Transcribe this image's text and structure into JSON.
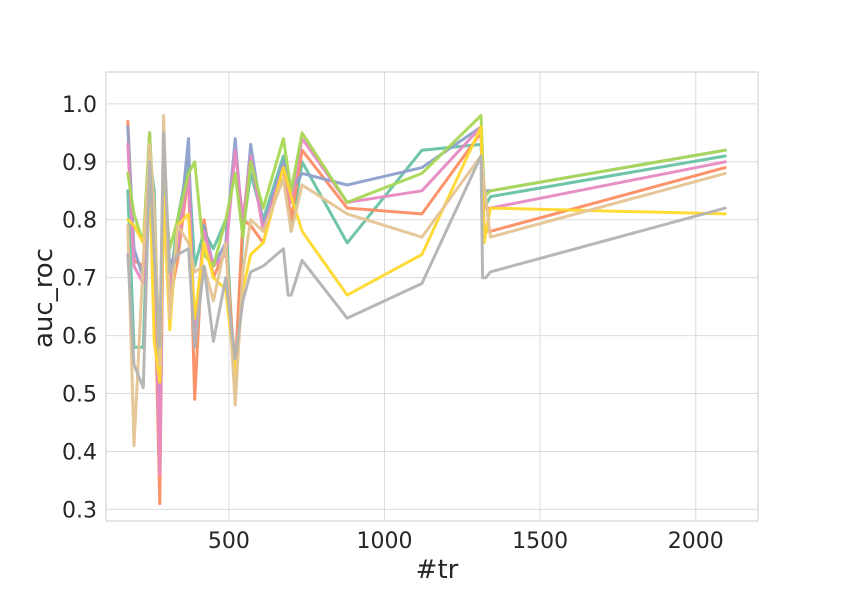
{
  "chart_data": {
    "type": "line",
    "title": "",
    "xlabel": "#tr",
    "ylabel": "auc_roc",
    "xlim": [
      105,
      2200
    ],
    "ylim": [
      0.28,
      1.055
    ],
    "xticks": [
      500,
      1000,
      1500,
      2000
    ],
    "xtick_labels": [
      "500",
      "1000",
      "1500",
      "2000"
    ],
    "yticks": [
      0.3,
      0.4,
      0.5,
      0.6,
      0.7,
      0.8,
      0.9,
      1.0
    ],
    "ytick_labels": [
      "0.3",
      "0.4",
      "0.5",
      "0.6",
      "0.7",
      "0.8",
      "0.9",
      "1.0"
    ],
    "grid": true,
    "legend": "none",
    "series": [
      {
        "color": "#66c2a5",
        "points": [
          [
            175,
            0.85
          ],
          [
            195,
            0.58
          ],
          [
            225,
            0.58
          ],
          [
            245,
            0.91
          ],
          [
            260,
            0.85
          ],
          [
            278,
            0.5
          ],
          [
            290,
            0.86
          ],
          [
            310,
            0.68
          ],
          [
            335,
            0.8
          ],
          [
            370,
            0.9
          ],
          [
            390,
            0.72
          ],
          [
            420,
            0.78
          ],
          [
            450,
            0.75
          ],
          [
            490,
            0.8
          ],
          [
            520,
            0.5
          ],
          [
            545,
            0.78
          ],
          [
            570,
            0.88
          ],
          [
            610,
            0.8
          ],
          [
            675,
            0.91
          ],
          [
            700,
            0.78
          ],
          [
            735,
            0.9
          ],
          [
            880,
            0.76
          ],
          [
            1120,
            0.92
          ],
          [
            1310,
            0.93
          ],
          [
            1320,
            0.82
          ],
          [
            1340,
            0.84
          ],
          [
            2095,
            0.91
          ]
        ]
      },
      {
        "color": "#fc8d62",
        "points": [
          [
            175,
            0.97
          ],
          [
            195,
            0.73
          ],
          [
            225,
            0.72
          ],
          [
            245,
            0.88
          ],
          [
            260,
            0.73
          ],
          [
            278,
            0.31
          ],
          [
            290,
            0.9
          ],
          [
            310,
            0.66
          ],
          [
            335,
            0.73
          ],
          [
            370,
            0.88
          ],
          [
            390,
            0.49
          ],
          [
            420,
            0.8
          ],
          [
            450,
            0.7
          ],
          [
            490,
            0.75
          ],
          [
            520,
            0.54
          ],
          [
            545,
            0.8
          ],
          [
            570,
            0.79
          ],
          [
            610,
            0.76
          ],
          [
            675,
            0.89
          ],
          [
            700,
            0.8
          ],
          [
            735,
            0.92
          ],
          [
            880,
            0.82
          ],
          [
            1120,
            0.81
          ],
          [
            1310,
            0.95
          ],
          [
            1320,
            0.78
          ],
          [
            1340,
            0.78
          ],
          [
            2095,
            0.89
          ]
        ]
      },
      {
        "color": "#8da0cb",
        "points": [
          [
            175,
            0.96
          ],
          [
            195,
            0.75
          ],
          [
            225,
            0.7
          ],
          [
            245,
            0.95
          ],
          [
            260,
            0.78
          ],
          [
            278,
            0.49
          ],
          [
            290,
            0.86
          ],
          [
            310,
            0.72
          ],
          [
            335,
            0.75
          ],
          [
            370,
            0.94
          ],
          [
            390,
            0.58
          ],
          [
            420,
            0.79
          ],
          [
            450,
            0.72
          ],
          [
            490,
            0.76
          ],
          [
            520,
            0.94
          ],
          [
            545,
            0.78
          ],
          [
            570,
            0.93
          ],
          [
            610,
            0.79
          ],
          [
            675,
            0.9
          ],
          [
            700,
            0.85
          ],
          [
            735,
            0.88
          ],
          [
            880,
            0.86
          ],
          [
            1120,
            0.89
          ],
          [
            1310,
            0.96
          ],
          [
            1320,
            0.85
          ],
          [
            1340,
            0.85
          ],
          [
            2095,
            0.92
          ]
        ]
      },
      {
        "color": "#e78ac3",
        "points": [
          [
            175,
            0.93
          ],
          [
            195,
            0.72
          ],
          [
            225,
            0.69
          ],
          [
            245,
            0.95
          ],
          [
            260,
            0.76
          ],
          [
            278,
            0.36
          ],
          [
            290,
            0.86
          ],
          [
            310,
            0.69
          ],
          [
            335,
            0.76
          ],
          [
            370,
            0.88
          ],
          [
            390,
            0.6
          ],
          [
            420,
            0.78
          ],
          [
            450,
            0.72
          ],
          [
            490,
            0.74
          ],
          [
            520,
            0.92
          ],
          [
            545,
            0.8
          ],
          [
            570,
            0.91
          ],
          [
            610,
            0.78
          ],
          [
            675,
            0.89
          ],
          [
            700,
            0.83
          ],
          [
            735,
            0.94
          ],
          [
            880,
            0.83
          ],
          [
            1120,
            0.85
          ],
          [
            1310,
            0.96
          ],
          [
            1320,
            0.82
          ],
          [
            1340,
            0.82
          ],
          [
            2095,
            0.9
          ]
        ]
      },
      {
        "color": "#a6d854",
        "points": [
          [
            175,
            0.88
          ],
          [
            195,
            0.81
          ],
          [
            225,
            0.76
          ],
          [
            245,
            0.95
          ],
          [
            260,
            0.79
          ],
          [
            278,
            0.52
          ],
          [
            290,
            0.87
          ],
          [
            310,
            0.75
          ],
          [
            335,
            0.8
          ],
          [
            370,
            0.88
          ],
          [
            390,
            0.9
          ],
          [
            420,
            0.74
          ],
          [
            450,
            0.72
          ],
          [
            490,
            0.8
          ],
          [
            520,
            0.88
          ],
          [
            545,
            0.77
          ],
          [
            570,
            0.9
          ],
          [
            610,
            0.82
          ],
          [
            675,
            0.94
          ],
          [
            700,
            0.85
          ],
          [
            735,
            0.95
          ],
          [
            880,
            0.83
          ],
          [
            1120,
            0.88
          ],
          [
            1310,
            0.98
          ],
          [
            1320,
            0.84
          ],
          [
            1340,
            0.85
          ],
          [
            2095,
            0.92
          ]
        ]
      },
      {
        "color": "#ffd92f",
        "points": [
          [
            175,
            0.8
          ],
          [
            195,
            0.79
          ],
          [
            225,
            0.76
          ],
          [
            245,
            0.88
          ],
          [
            260,
            0.59
          ],
          [
            278,
            0.52
          ],
          [
            290,
            0.84
          ],
          [
            310,
            0.61
          ],
          [
            335,
            0.79
          ],
          [
            370,
            0.81
          ],
          [
            390,
            0.63
          ],
          [
            420,
            0.76
          ],
          [
            450,
            0.7
          ],
          [
            490,
            0.68
          ],
          [
            520,
            0.53
          ],
          [
            545,
            0.68
          ],
          [
            570,
            0.74
          ],
          [
            610,
            0.76
          ],
          [
            675,
            0.89
          ],
          [
            700,
            0.84
          ],
          [
            735,
            0.78
          ],
          [
            880,
            0.67
          ],
          [
            1120,
            0.74
          ],
          [
            1310,
            0.96
          ],
          [
            1320,
            0.76
          ],
          [
            1340,
            0.82
          ],
          [
            2095,
            0.81
          ]
        ]
      },
      {
        "color": "#e5c494",
        "points": [
          [
            175,
            0.79
          ],
          [
            195,
            0.41
          ],
          [
            225,
            0.73
          ],
          [
            245,
            0.93
          ],
          [
            260,
            0.82
          ],
          [
            278,
            0.55
          ],
          [
            290,
            0.98
          ],
          [
            310,
            0.63
          ],
          [
            335,
            0.79
          ],
          [
            370,
            0.76
          ],
          [
            390,
            0.71
          ],
          [
            420,
            0.72
          ],
          [
            450,
            0.66
          ],
          [
            490,
            0.76
          ],
          [
            520,
            0.48
          ],
          [
            545,
            0.71
          ],
          [
            570,
            0.8
          ],
          [
            610,
            0.78
          ],
          [
            675,
            0.87
          ],
          [
            700,
            0.78
          ],
          [
            735,
            0.86
          ],
          [
            880,
            0.81
          ],
          [
            1120,
            0.77
          ],
          [
            1310,
            0.91
          ],
          [
            1320,
            0.86
          ],
          [
            1340,
            0.77
          ],
          [
            2095,
            0.88
          ]
        ]
      },
      {
        "color": "#b3b3b3",
        "points": [
          [
            175,
            0.74
          ],
          [
            195,
            0.55
          ],
          [
            225,
            0.51
          ],
          [
            245,
            0.9
          ],
          [
            260,
            0.74
          ],
          [
            278,
            0.58
          ],
          [
            290,
            0.95
          ],
          [
            310,
            0.71
          ],
          [
            335,
            0.74
          ],
          [
            370,
            0.75
          ],
          [
            390,
            0.58
          ],
          [
            420,
            0.72
          ],
          [
            450,
            0.59
          ],
          [
            490,
            0.7
          ],
          [
            520,
            0.56
          ],
          [
            545,
            0.66
          ],
          [
            570,
            0.71
          ],
          [
            610,
            0.72
          ],
          [
            675,
            0.75
          ],
          [
            690,
            0.67
          ],
          [
            700,
            0.67
          ],
          [
            735,
            0.73
          ],
          [
            880,
            0.63
          ],
          [
            1120,
            0.69
          ],
          [
            1310,
            0.91
          ],
          [
            1315,
            0.7
          ],
          [
            1325,
            0.7
          ],
          [
            1340,
            0.71
          ],
          [
            2095,
            0.82
          ]
        ]
      }
    ]
  }
}
